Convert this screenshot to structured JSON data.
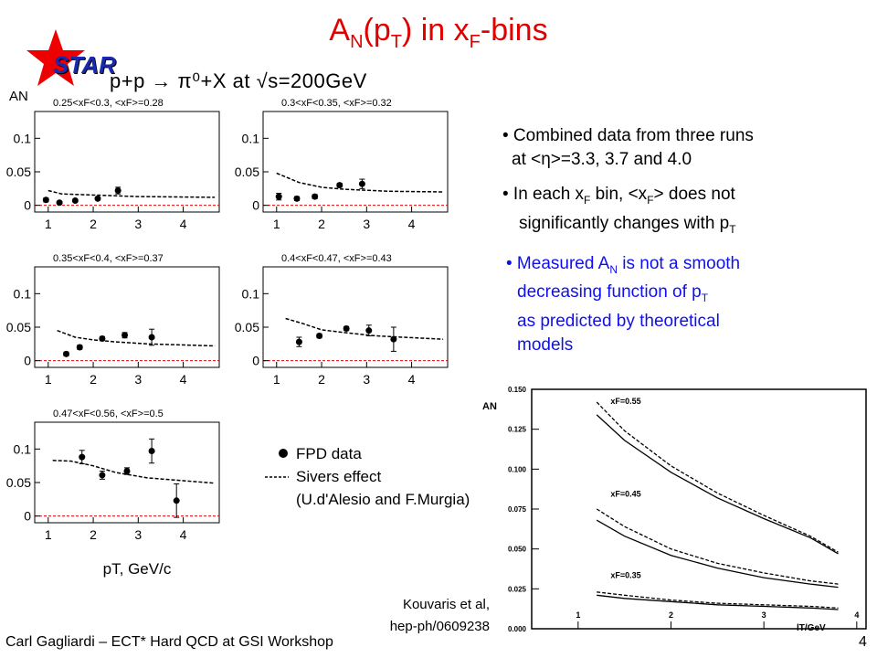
{
  "header": {
    "title_main": "A",
    "title_sub_n": "N",
    "title_mid": "(p",
    "title_sub_t": "T",
    "title_after": ") in x",
    "title_sub_f": "F",
    "title_end": "-bins",
    "logo_text": "STAR",
    "reaction": "p+p → π⁰+X at √s=200GeV"
  },
  "bullets": [
    {
      "text1": "• Combined data from three runs",
      "text2": "at <η>=3.3, 3.7 and 4.0"
    },
    {
      "text1a": "• In each x",
      "sub1": "F",
      "text1b": " bin, <x",
      "sub2": "F",
      "text1c": "> does not",
      "text2a": "significantly changes with p",
      "sub3": "T"
    },
    {
      "text1a": "• Measured A",
      "sub1": "N",
      "text1b": " is not a smooth",
      "text2a": "decreasing function of  p",
      "sub2": "T",
      "text3": "as predicted by theoretical",
      "text4": "models"
    }
  ],
  "reference": {
    "line1": "Kouvaris et al,",
    "line2": "hep-ph/0609238"
  },
  "footer": {
    "text": "Carl Gagliardi – ECT* Hard QCD at GSI Workshop",
    "page": "4"
  },
  "legend": {
    "data_label": "FPD data",
    "model_label": "Sivers effect",
    "model_ref": "(U.d'Alesio and F.Murgia)"
  },
  "colors": {
    "title": "#e00000",
    "star": "#ee0000",
    "logo": "#1a2ab0",
    "blue_text": "#1010ee",
    "zero_line": "#ee0000"
  },
  "chart_data": [
    {
      "type": "scatter",
      "title": "0.25<x_F<0.3,  <x_F>=0.28",
      "ylabel": "A_N",
      "xlim": [
        0.7,
        4.8
      ],
      "ylim": [
        -0.01,
        0.14
      ],
      "xticks": [
        1,
        2,
        3,
        4
      ],
      "yticks": [
        "0",
        "0.05",
        "0.1"
      ],
      "points": [
        {
          "x": 0.95,
          "y": 0.008,
          "err": 0.003
        },
        {
          "x": 1.25,
          "y": 0.004,
          "err": 0.002
        },
        {
          "x": 1.6,
          "y": 0.007,
          "err": 0.002
        },
        {
          "x": 2.1,
          "y": 0.01,
          "err": 0.002
        },
        {
          "x": 2.55,
          "y": 0.022,
          "err": 0.005
        }
      ],
      "model": [
        [
          1.0,
          0.022
        ],
        [
          1.3,
          0.017
        ],
        [
          1.7,
          0.016
        ],
        [
          2.2,
          0.015
        ],
        [
          3.0,
          0.013
        ],
        [
          4.7,
          0.012
        ]
      ]
    },
    {
      "type": "scatter",
      "title": "0.3<x_F<0.35,  <x_F>=0.32",
      "ylabel": "",
      "xlim": [
        0.7,
        4.8
      ],
      "ylim": [
        -0.01,
        0.14
      ],
      "xticks": [
        1,
        2,
        3,
        4
      ],
      "yticks": [
        "0",
        "0.05",
        "0.1"
      ],
      "points": [
        {
          "x": 1.05,
          "y": 0.013,
          "err": 0.005
        },
        {
          "x": 1.45,
          "y": 0.01,
          "err": 0.003
        },
        {
          "x": 1.85,
          "y": 0.013,
          "err": 0.003
        },
        {
          "x": 2.4,
          "y": 0.03,
          "err": 0.003
        },
        {
          "x": 2.9,
          "y": 0.032,
          "err": 0.007
        }
      ],
      "model": [
        [
          1.0,
          0.048
        ],
        [
          1.5,
          0.034
        ],
        [
          2.0,
          0.027
        ],
        [
          2.5,
          0.024
        ],
        [
          3.5,
          0.021
        ],
        [
          4.7,
          0.02
        ]
      ]
    },
    {
      "type": "scatter",
      "title": "0.35<x_F<0.4,  <x_F>=0.37",
      "ylabel": "",
      "xlim": [
        0.7,
        4.8
      ],
      "ylim": [
        -0.01,
        0.14
      ],
      "xticks": [
        1,
        2,
        3,
        4
      ],
      "yticks": [
        "0",
        "0.05",
        "0.1"
      ],
      "points": [
        {
          "x": 1.4,
          "y": 0.01,
          "err": 0.003
        },
        {
          "x": 1.7,
          "y": 0.02,
          "err": 0.003
        },
        {
          "x": 2.2,
          "y": 0.033,
          "err": 0.003
        },
        {
          "x": 2.7,
          "y": 0.038,
          "err": 0.004
        },
        {
          "x": 3.3,
          "y": 0.035,
          "err": 0.012
        }
      ],
      "model": [
        [
          1.2,
          0.045
        ],
        [
          1.6,
          0.035
        ],
        [
          2.0,
          0.031
        ],
        [
          2.5,
          0.028
        ],
        [
          3.2,
          0.025
        ],
        [
          4.7,
          0.022
        ]
      ]
    },
    {
      "type": "scatter",
      "title": "0.4<x_F<0.47,  <x_F>=0.43",
      "ylabel": "",
      "xlim": [
        0.7,
        4.8
      ],
      "ylim": [
        -0.01,
        0.14
      ],
      "xticks": [
        1,
        2,
        3,
        4
      ],
      "yticks": [
        "0",
        "0.05",
        "0.1"
      ],
      "points": [
        {
          "x": 1.5,
          "y": 0.028,
          "err": 0.007
        },
        {
          "x": 1.95,
          "y": 0.037,
          "err": 0.003
        },
        {
          "x": 2.55,
          "y": 0.048,
          "err": 0.003
        },
        {
          "x": 3.05,
          "y": 0.045,
          "err": 0.008
        },
        {
          "x": 3.6,
          "y": 0.032,
          "err": 0.018
        }
      ],
      "model": [
        [
          1.2,
          0.063
        ],
        [
          1.6,
          0.055
        ],
        [
          2.0,
          0.046
        ],
        [
          2.5,
          0.042
        ],
        [
          3.2,
          0.037
        ],
        [
          4.7,
          0.032
        ]
      ]
    },
    {
      "type": "scatter",
      "title": "0.47<x_F<0.56, <x_F>=0.5",
      "ylabel": "",
      "xlabel": "p_T, GeV/c",
      "xlim": [
        0.7,
        4.8
      ],
      "ylim": [
        -0.01,
        0.14
      ],
      "xticks": [
        1,
        2,
        3,
        4
      ],
      "yticks": [
        "0",
        "0.05",
        "0.1"
      ],
      "points": [
        {
          "x": 1.75,
          "y": 0.088,
          "err": 0.01
        },
        {
          "x": 2.2,
          "y": 0.061,
          "err": 0.006
        },
        {
          "x": 2.75,
          "y": 0.067,
          "err": 0.005
        },
        {
          "x": 3.3,
          "y": 0.097,
          "err": 0.018
        },
        {
          "x": 3.85,
          "y": 0.023,
          "err": 0.025
        }
      ],
      "model": [
        [
          1.1,
          0.083
        ],
        [
          1.5,
          0.082
        ],
        [
          2.0,
          0.075
        ],
        [
          2.5,
          0.065
        ],
        [
          3.2,
          0.057
        ],
        [
          4.7,
          0.049
        ]
      ]
    },
    {
      "type": "line",
      "title": "",
      "ylabel": "A_N",
      "xlabel": "l_T/GeV",
      "xlim": [
        0.5,
        4.1
      ],
      "ylim": [
        0,
        0.15
      ],
      "xticks": [
        "1",
        "2",
        "3",
        "4"
      ],
      "yticks": [
        "0.000",
        "0.025",
        "0.050",
        "0.075",
        "0.100",
        "0.125",
        "0.150"
      ],
      "series": [
        {
          "name": "x_F=0.55",
          "solid": [
            [
              1.2,
              0.134
            ],
            [
              1.5,
              0.118
            ],
            [
              2.0,
              0.098
            ],
            [
              2.5,
              0.082
            ],
            [
              3.0,
              0.069
            ],
            [
              3.5,
              0.057
            ],
            [
              3.8,
              0.047
            ]
          ],
          "dashed": [
            [
              1.2,
              0.142
            ],
            [
              1.5,
              0.124
            ],
            [
              2.0,
              0.102
            ],
            [
              2.5,
              0.085
            ],
            [
              3.0,
              0.071
            ],
            [
              3.5,
              0.058
            ],
            [
              3.8,
              0.048
            ]
          ]
        },
        {
          "name": "x_F=0.45",
          "solid": [
            [
              1.2,
              0.068
            ],
            [
              1.5,
              0.058
            ],
            [
              2.0,
              0.046
            ],
            [
              2.5,
              0.038
            ],
            [
              3.0,
              0.032
            ],
            [
              3.5,
              0.028
            ],
            [
              3.8,
              0.026
            ]
          ],
          "dashed": [
            [
              1.2,
              0.075
            ],
            [
              1.5,
              0.064
            ],
            [
              2.0,
              0.05
            ],
            [
              2.5,
              0.041
            ],
            [
              3.0,
              0.035
            ],
            [
              3.5,
              0.03
            ],
            [
              3.8,
              0.028
            ]
          ]
        },
        {
          "name": "x_F=0.35",
          "solid": [
            [
              1.2,
              0.021
            ],
            [
              1.5,
              0.019
            ],
            [
              2.0,
              0.017
            ],
            [
              2.5,
              0.015
            ],
            [
              3.0,
              0.014
            ],
            [
              3.5,
              0.013
            ],
            [
              3.8,
              0.012
            ]
          ],
          "dashed": [
            [
              1.2,
              0.023
            ],
            [
              1.5,
              0.021
            ],
            [
              2.0,
              0.018
            ],
            [
              2.5,
              0.016
            ],
            [
              3.0,
              0.015
            ],
            [
              3.5,
              0.014
            ],
            [
              3.8,
              0.013
            ]
          ]
        }
      ]
    }
  ]
}
